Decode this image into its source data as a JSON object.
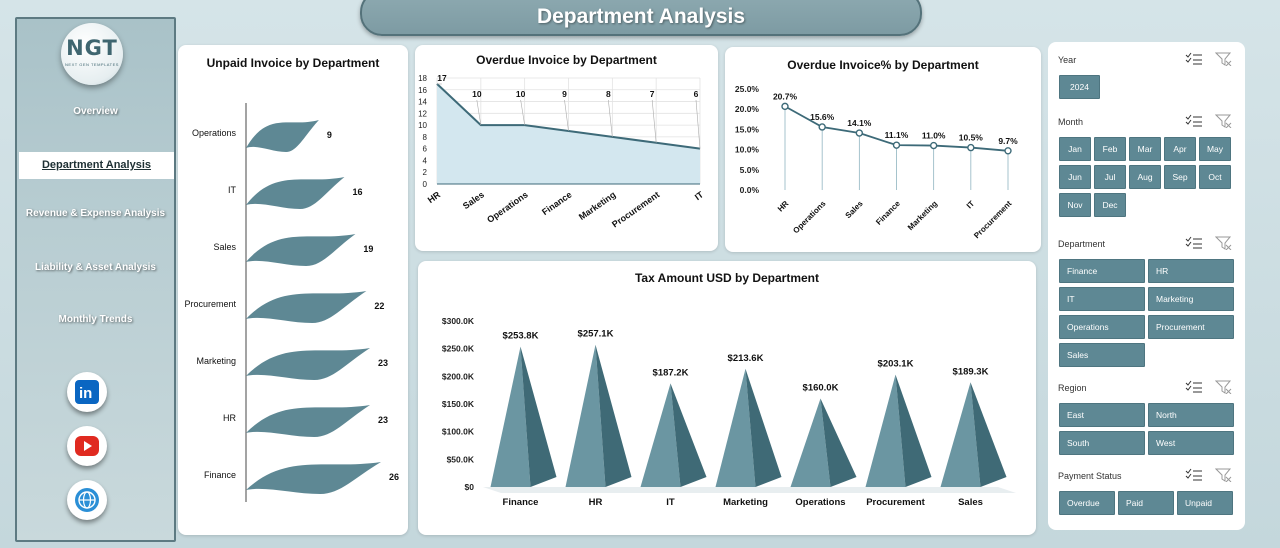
{
  "page_title": "Department Analysis",
  "logo": {
    "main": "NGT",
    "sub": "NEXT GEN TEMPLATES"
  },
  "nav": [
    "Overview",
    "Department Analysis",
    "Revenue & Expense Analysis",
    "Liability & Asset Analysis",
    "Monthly Trends"
  ],
  "nav_active": "Department Analysis",
  "social": [
    "linkedin-icon",
    "youtube-icon",
    "globe-icon"
  ],
  "colors": {
    "accent": "#5e8894",
    "line": "#3d6a78",
    "flag": "#5e8894",
    "area_fill": "#d3e7ef"
  },
  "chart_data": [
    {
      "type": "bar",
      "title": "Unpaid Invoice by Department",
      "categories": [
        "Operations",
        "IT",
        "Sales",
        "Procurement",
        "Marketing",
        "HR",
        "Finance"
      ],
      "values": [
        9,
        16,
        19,
        22,
        23,
        23,
        26
      ]
    },
    {
      "type": "area",
      "title": "Overdue Invoice by Department",
      "categories": [
        "HR",
        "Sales",
        "Operations",
        "Finance",
        "Marketing",
        "Procurement",
        "IT"
      ],
      "values": [
        17,
        10,
        10,
        9,
        8,
        7,
        6
      ],
      "ylim": [
        0,
        18
      ],
      "yticks": [
        "0",
        "2",
        "4",
        "6",
        "8",
        "10",
        "12",
        "14",
        "16",
        "18"
      ],
      "grid": true
    },
    {
      "type": "line",
      "title": "Overdue Invoice% by Department",
      "categories": [
        "HR",
        "Operations",
        "Sales",
        "Finance",
        "Marketing",
        "IT",
        "Procurement"
      ],
      "values": [
        20.7,
        15.6,
        14.1,
        11.1,
        11.0,
        10.5,
        9.7
      ],
      "value_labels": [
        "20.7%",
        "15.6%",
        "14.1%",
        "11.1%",
        "11.0%",
        "10.5%",
        "9.7%"
      ],
      "ylim": [
        0,
        25
      ],
      "yticks": [
        "0.0%",
        "5.0%",
        "10.0%",
        "15.0%",
        "20.0%",
        "25.0%"
      ]
    },
    {
      "type": "bar",
      "title": "Tax Amount USD by Department",
      "categories": [
        "Finance",
        "HR",
        "IT",
        "Marketing",
        "Operations",
        "Procurement",
        "Sales"
      ],
      "values": [
        253.8,
        257.1,
        187.2,
        213.6,
        160.0,
        203.1,
        189.3
      ],
      "value_labels": [
        "$253.8K",
        "$257.1K",
        "$187.2K",
        "$213.6K",
        "$160.0K",
        "$203.1K",
        "$189.3K"
      ],
      "ylim": [
        0,
        300
      ],
      "yticks": [
        "$0",
        "$50.0K",
        "$100.0K",
        "$150.0K",
        "$200.0K",
        "$250.0K",
        "$300.0K"
      ]
    }
  ],
  "slicers": {
    "year": {
      "label": "Year",
      "items": [
        "2024"
      ]
    },
    "month": {
      "label": "Month",
      "items": [
        "Jan",
        "Feb",
        "Mar",
        "Apr",
        "May",
        "Jun",
        "Jul",
        "Aug",
        "Sep",
        "Oct",
        "Nov",
        "Dec"
      ]
    },
    "department": {
      "label": "Department",
      "items": [
        "Finance",
        "HR",
        "IT",
        "Marketing",
        "Operations",
        "Procurement",
        "Sales"
      ]
    },
    "region": {
      "label": "Region",
      "items": [
        "East",
        "North",
        "South",
        "West"
      ]
    },
    "payment": {
      "label": "Payment Status",
      "items": [
        "Overdue",
        "Paid",
        "Unpaid"
      ]
    }
  }
}
